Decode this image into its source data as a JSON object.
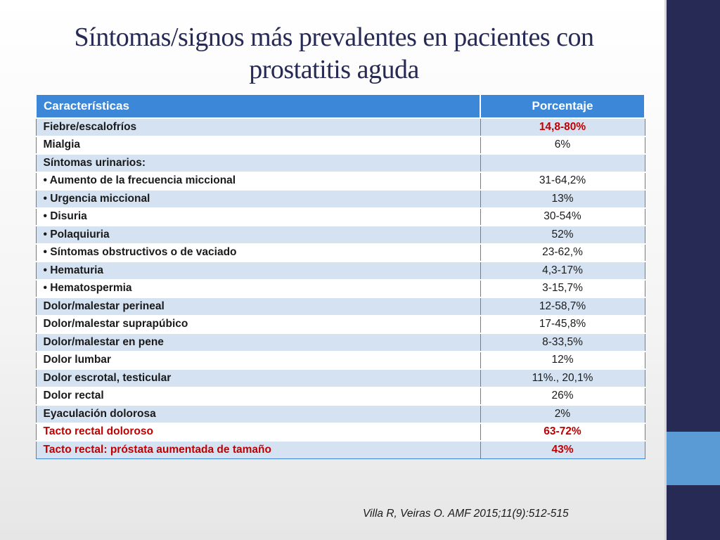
{
  "slide": {
    "title": "Síntomas/signos más prevalentes en pacientes con prostatitis aguda",
    "citation": "Villa R, Veiras O. AMF 2015;11(9):512-515",
    "colors": {
      "header": "#3c87d8",
      "band": "#d4e2f2",
      "highlight": "#c00000",
      "sidebar": "#262a54",
      "accent": "#5b9bd5"
    }
  },
  "table": {
    "headers": [
      "Características",
      "Porcentaje"
    ],
    "rows": [
      {
        "label": "Fiebre/escalofríos",
        "value": "14,8-80%",
        "value_red": true
      },
      {
        "label": "Mialgia",
        "value": "6%"
      },
      {
        "label": "Síntomas urinarios:",
        "value": ""
      },
      {
        "label": "• Aumento de la frecuencia miccional",
        "value": "31-64,2%"
      },
      {
        "label": "• Urgencia miccional",
        "value": "13%"
      },
      {
        "label": "• Disuria",
        "value": "30-54%"
      },
      {
        "label": "• Polaquiuria",
        "value": "52%"
      },
      {
        "label": "• Síntomas obstructivos o de vaciado",
        "value": "23-62,%"
      },
      {
        "label": "• Hematuria",
        "value": "4,3-17%"
      },
      {
        "label": "• Hematospermia",
        "value": "3-15,7%"
      },
      {
        "label": "Dolor/malestar perineal",
        "value": "12-58,7%"
      },
      {
        "label": "Dolor/malestar suprapúbico",
        "value": "17-45,8%"
      },
      {
        "label": "Dolor/malestar en pene",
        "value": "8-33,5%"
      },
      {
        "label": "Dolor lumbar",
        "value": "12%"
      },
      {
        "label": "Dolor escrotal, testicular",
        "value": "11%., 20,1%"
      },
      {
        "label": "Dolor rectal",
        "value": "26%"
      },
      {
        "label": "Eyaculación dolorosa",
        "value": "2%"
      },
      {
        "label": "Tacto rectal doloroso",
        "value": "63-72%",
        "red": true
      },
      {
        "label": "Tacto rectal: próstata aumentada de tamaño",
        "value": "43%",
        "red": true
      }
    ]
  }
}
